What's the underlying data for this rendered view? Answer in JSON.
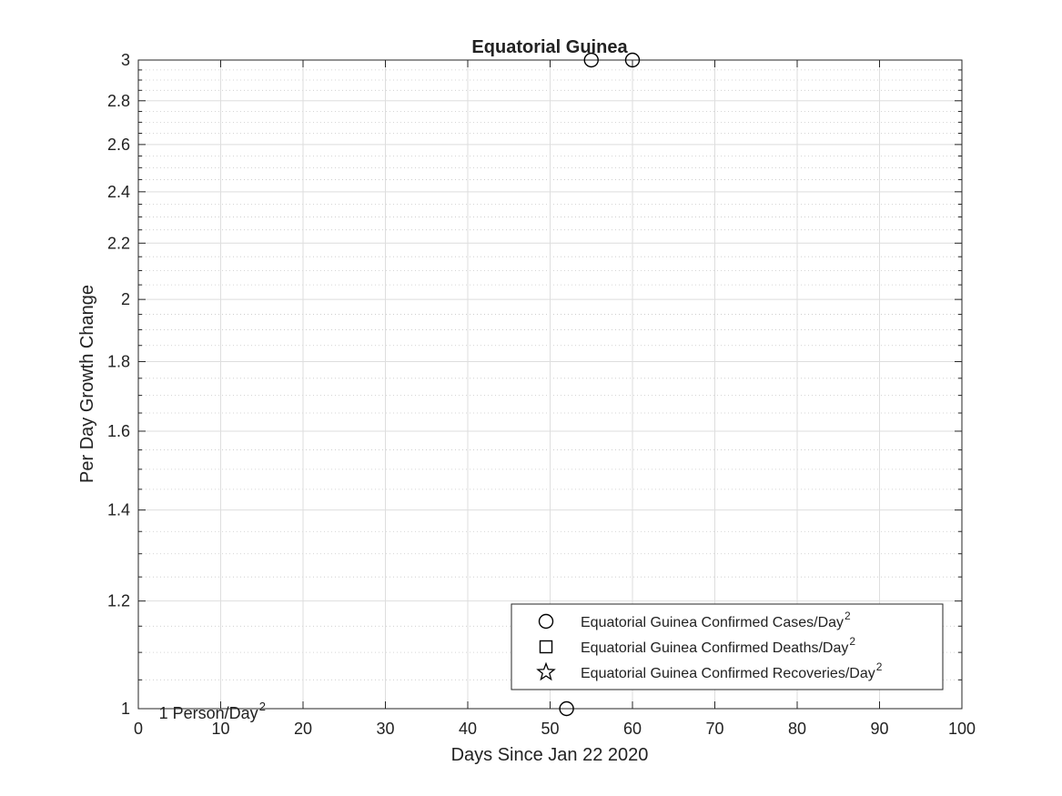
{
  "chart_data": {
    "type": "scatter",
    "title": "Equatorial Guinea",
    "xlabel": "Days Since Jan 22 2020",
    "ylabel": "Per Day Growth Change",
    "xlim": [
      0,
      100
    ],
    "ylim": [
      1,
      3
    ],
    "yscale": "log",
    "grid": true,
    "minor_grid": true,
    "x_ticks": [
      0,
      10,
      20,
      30,
      40,
      50,
      60,
      70,
      80,
      90,
      100
    ],
    "y_ticks": [
      1,
      1.2,
      1.4,
      1.6,
      1.8,
      2,
      2.2,
      2.4,
      2.6,
      2.8,
      3
    ],
    "y_tick_labels": [
      "1",
      "1.2",
      "1.4",
      "1.6",
      "1.8",
      "2",
      "2.2",
      "2.4",
      "2.6",
      "2.8",
      "3"
    ],
    "legend_position": "bottom-right",
    "series": [
      {
        "name": "Equatorial Guinea Confirmed Cases/Day",
        "name_sup": "2",
        "marker": "circle",
        "color": "#000000",
        "points": [
          {
            "x": 52,
            "y": 1
          },
          {
            "x": 55,
            "y": 3
          },
          {
            "x": 60,
            "y": 3
          }
        ]
      },
      {
        "name": "Equatorial Guinea Confirmed Deaths/Day",
        "name_sup": "2",
        "marker": "square",
        "color": "#000000",
        "points": []
      },
      {
        "name": "Equatorial Guinea Confirmed Recoveries/Day",
        "name_sup": "2",
        "marker": "star",
        "color": "#000000",
        "points": []
      }
    ],
    "annotations": [
      {
        "text": "1 Person/Day",
        "sup": "2",
        "x": 2.5,
        "y": 1
      }
    ]
  },
  "colors": {
    "axis": "#262626",
    "major_grid": "#dedede",
    "minor_grid": "#c8c8c8",
    "background": "#ffffff"
  }
}
